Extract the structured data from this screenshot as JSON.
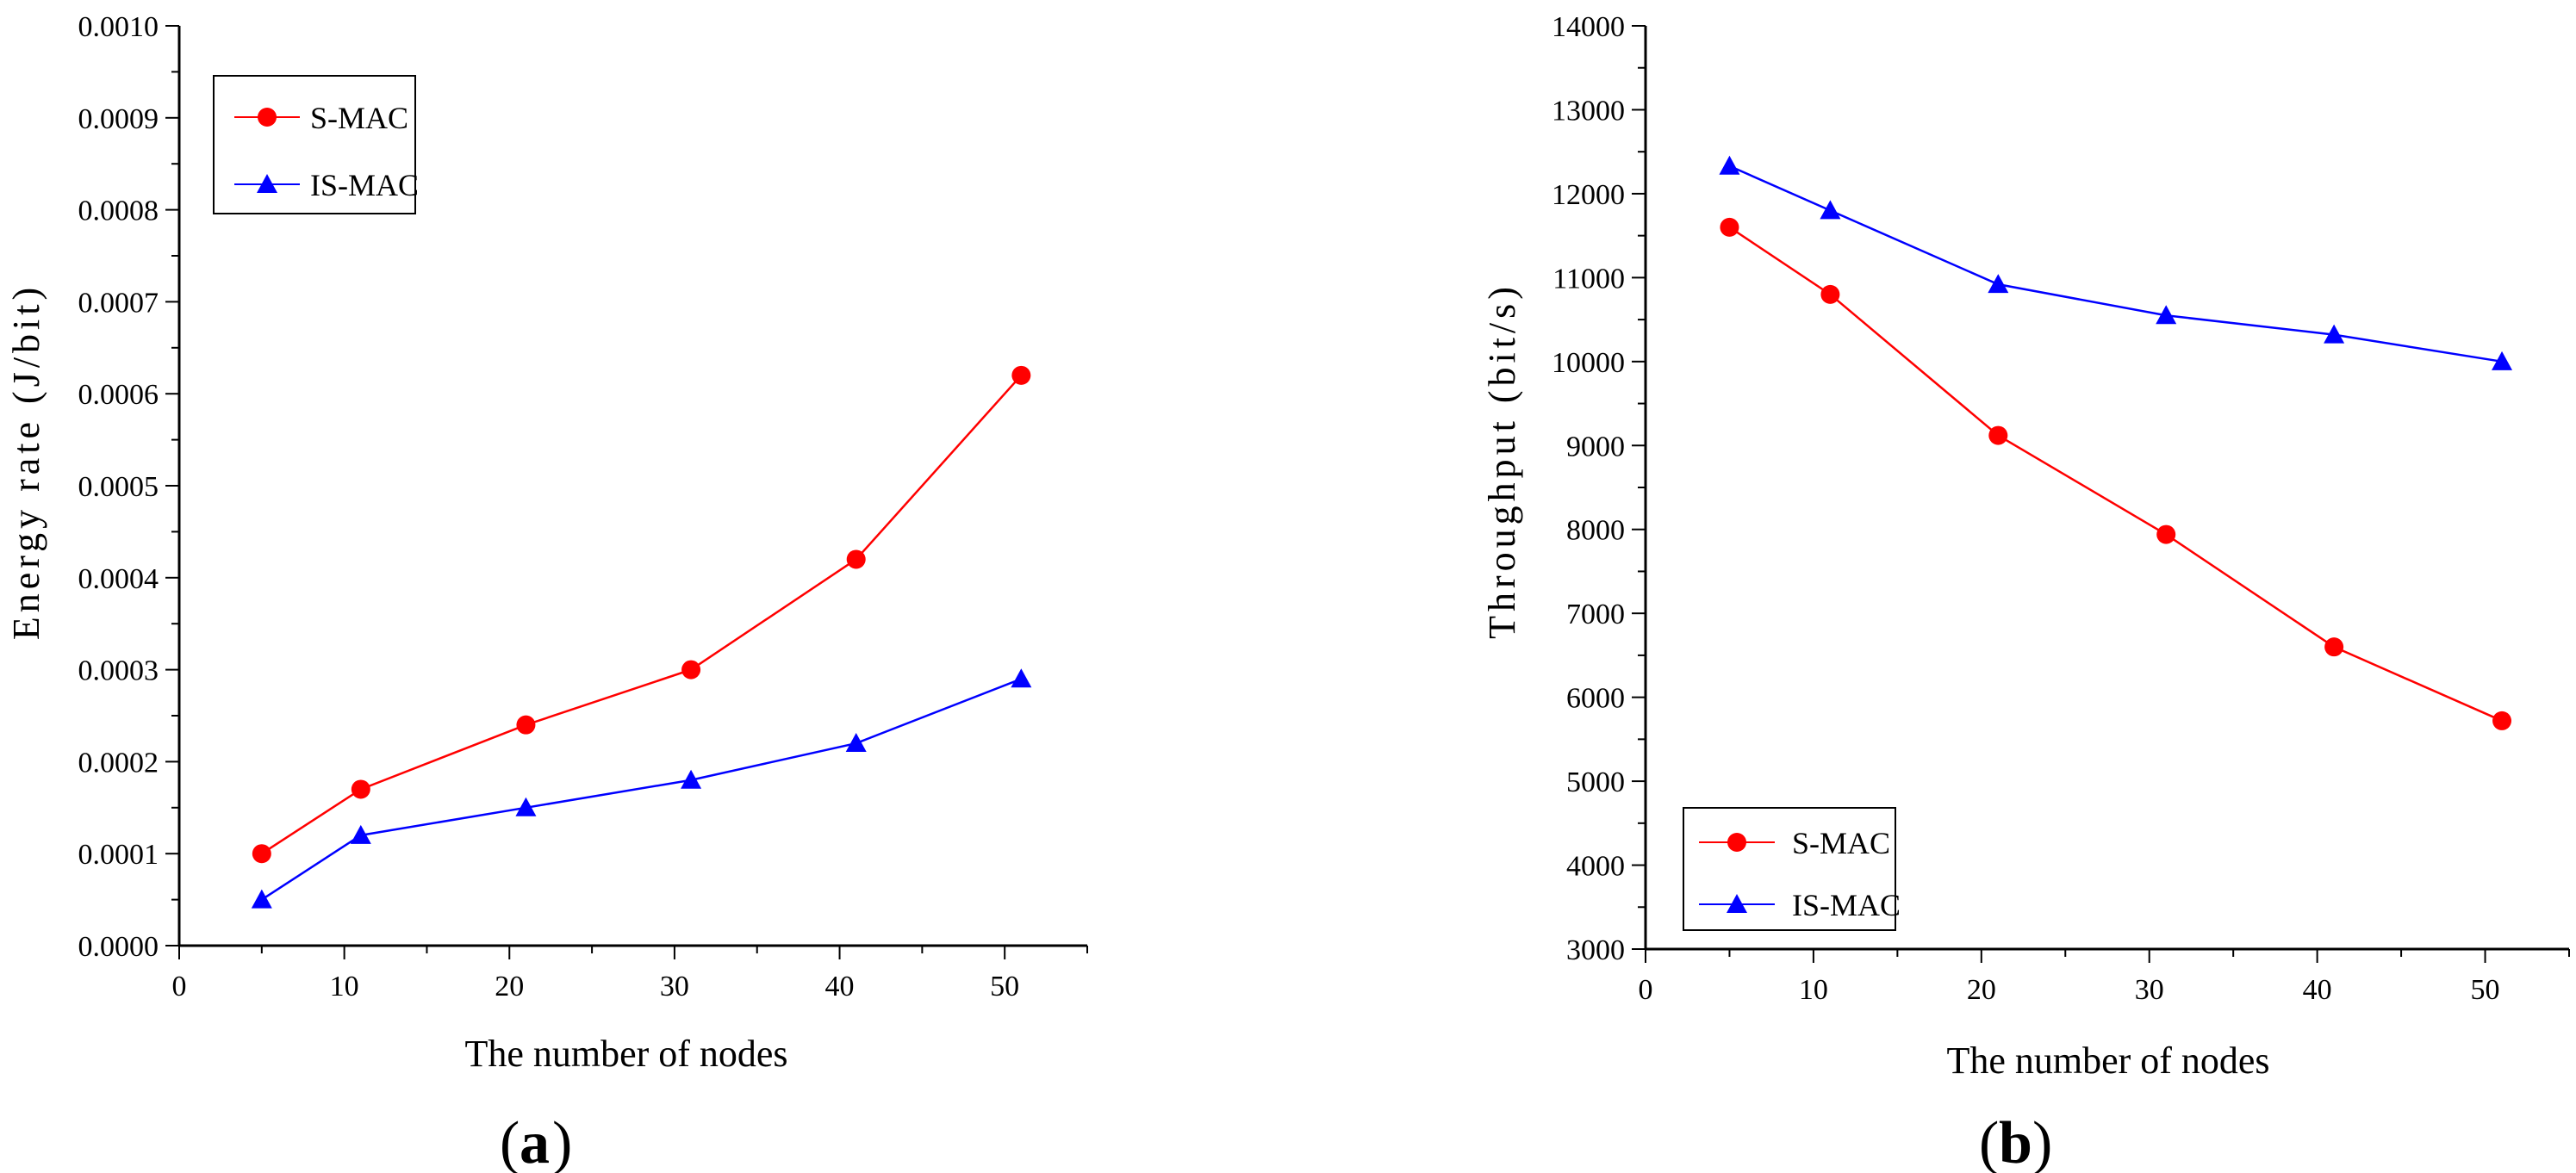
{
  "chart_data": [
    {
      "type": "line",
      "panel_label": "a",
      "xlabel": "The number of nodes",
      "ylabel": "Energy rate (J/bit)",
      "xlim": [
        0,
        55
      ],
      "ylim": [
        0,
        0.001
      ],
      "x_ticks": [
        0,
        10,
        20,
        30,
        40,
        50
      ],
      "x_tick_labels": [
        "0",
        "10",
        "20",
        "30",
        "40",
        "50"
      ],
      "y_ticks": [
        0,
        0.0001,
        0.0002,
        0.0003,
        0.0004,
        0.0005,
        0.0006,
        0.0007,
        0.0008,
        0.0009,
        0.001
      ],
      "y_tick_labels": [
        "0.0000",
        "0.0001",
        "0.0002",
        "0.0003",
        "0.0004",
        "0.0005",
        "0.0006",
        "0.0007",
        "0.0008",
        "0.0009",
        "0.0010"
      ],
      "grid": false,
      "legend_position": "top-left",
      "x": [
        5,
        11,
        21,
        31,
        41,
        51
      ],
      "series": [
        {
          "name": "S-MAC",
          "color": "#ff0000",
          "marker": "circle",
          "values": [
            0.0001,
            0.00017,
            0.00024,
            0.0003,
            0.00042,
            0.00062
          ]
        },
        {
          "name": "IS-MAC",
          "color": "#0000ff",
          "marker": "triangle",
          "values": [
            5e-05,
            0.00012,
            0.00015,
            0.00018,
            0.00022,
            0.00029
          ]
        }
      ]
    },
    {
      "type": "line",
      "panel_label": "b",
      "xlabel": "The number of nodes",
      "ylabel": "Throughput (bit/s)",
      "xlim": [
        0,
        55
      ],
      "ylim": [
        3000,
        14000
      ],
      "x_ticks": [
        0,
        10,
        20,
        30,
        40,
        50
      ],
      "x_tick_labels": [
        "0",
        "10",
        "20",
        "30",
        "40",
        "50"
      ],
      "y_ticks": [
        3000,
        4000,
        5000,
        6000,
        7000,
        8000,
        9000,
        10000,
        11000,
        12000,
        13000,
        14000
      ],
      "y_tick_labels": [
        "3000",
        "4000",
        "5000",
        "6000",
        "7000",
        "8000",
        "9000",
        "10000",
        "11000",
        "12000",
        "13000",
        "14000"
      ],
      "grid": false,
      "legend_position": "bottom-left",
      "x": [
        5,
        11,
        21,
        31,
        41,
        51
      ],
      "series": [
        {
          "name": "S-MAC",
          "color": "#ff0000",
          "marker": "circle",
          "values": [
            11600,
            10800,
            9120,
            7940,
            6600,
            5720
          ]
        },
        {
          "name": "IS-MAC",
          "color": "#0000ff",
          "marker": "triangle",
          "values": [
            12330,
            11800,
            10920,
            10550,
            10320,
            10000
          ]
        }
      ]
    }
  ]
}
